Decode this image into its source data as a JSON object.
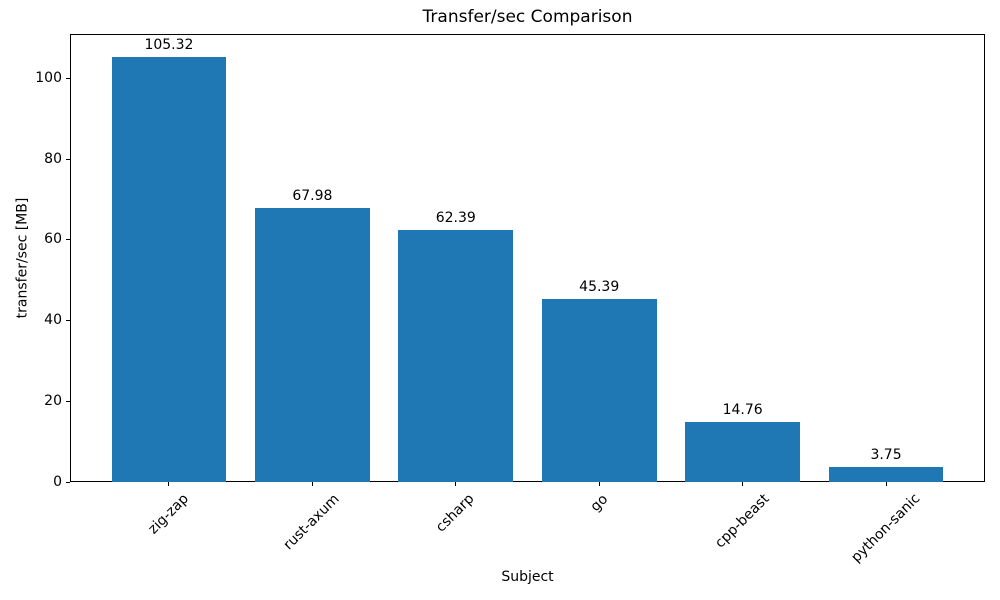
{
  "chart_data": {
    "type": "bar",
    "title": "Transfer/sec Comparison",
    "xlabel": "Subject",
    "ylabel": "transfer/sec [MB]",
    "categories": [
      "zig-zap",
      "rust-axum",
      "csharp",
      "go",
      "cpp-beast",
      "python-sanic"
    ],
    "values": [
      105.32,
      67.98,
      62.39,
      45.39,
      14.76,
      3.75
    ],
    "value_labels": [
      "105.32",
      "67.98",
      "62.39",
      "45.39",
      "14.76",
      "3.75"
    ],
    "bar_color": "#1f77b4",
    "ylim": [
      0,
      111
    ],
    "yticks": [
      0,
      20,
      40,
      60,
      80,
      100
    ],
    "xtick_rotation_deg": 45,
    "grid": false,
    "legend": "none",
    "background_color": "#ffffff",
    "text_color": "#000000"
  }
}
